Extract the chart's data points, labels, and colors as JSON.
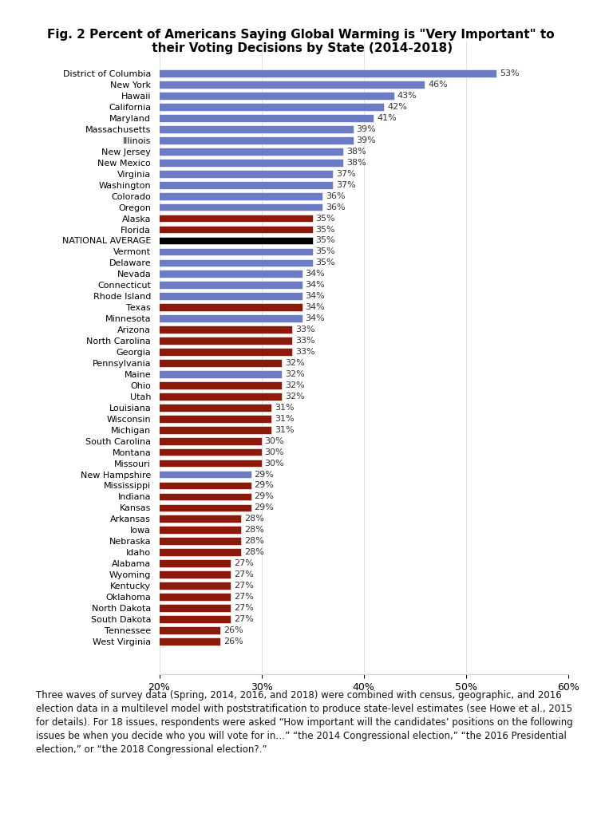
{
  "title": "Fig. 2 Percent of Americans Saying Global Warming is \"Very Important\" to\n their Voting Decisions by State (2014-2018)",
  "states": [
    "District of Columbia",
    "New York",
    "Hawaii",
    "California",
    "Maryland",
    "Massachusetts",
    "Illinois",
    "New Jersey",
    "New Mexico",
    "Virginia",
    "Washington",
    "Colorado",
    "Oregon",
    "Alaska",
    "Florida",
    "NATIONAL AVERAGE",
    "Vermont",
    "Delaware",
    "Nevada",
    "Connecticut",
    "Rhode Island",
    "Texas",
    "Minnesota",
    "Arizona",
    "North Carolina",
    "Georgia",
    "Pennsylvania",
    "Maine",
    "Ohio",
    "Utah",
    "Louisiana",
    "Wisconsin",
    "Michigan",
    "South Carolina",
    "Montana",
    "Missouri",
    "New Hampshire",
    "Mississippi",
    "Indiana",
    "Kansas",
    "Arkansas",
    "Iowa",
    "Nebraska",
    "Idaho",
    "Alabama",
    "Wyoming",
    "Kentucky",
    "Oklahoma",
    "North Dakota",
    "South Dakota",
    "Tennessee",
    "West Virginia"
  ],
  "values": [
    53,
    46,
    43,
    42,
    41,
    39,
    39,
    38,
    38,
    37,
    37,
    36,
    36,
    35,
    35,
    35,
    35,
    35,
    34,
    34,
    34,
    34,
    34,
    33,
    33,
    33,
    32,
    32,
    32,
    32,
    31,
    31,
    31,
    30,
    30,
    30,
    29,
    29,
    29,
    29,
    28,
    28,
    28,
    28,
    27,
    27,
    27,
    27,
    27,
    27,
    26,
    26
  ],
  "colors": [
    "#6b7cc4",
    "#6b7cc4",
    "#6b7cc4",
    "#6b7cc4",
    "#6b7cc4",
    "#6b7cc4",
    "#6b7cc4",
    "#6b7cc4",
    "#6b7cc4",
    "#6b7cc4",
    "#6b7cc4",
    "#6b7cc4",
    "#6b7cc4",
    "#8b1a0a",
    "#8b1a0a",
    "#000000",
    "#6b7cc4",
    "#6b7cc4",
    "#6b7cc4",
    "#6b7cc4",
    "#6b7cc4",
    "#8b1a0a",
    "#6b7cc4",
    "#8b1a0a",
    "#8b1a0a",
    "#8b1a0a",
    "#8b1a0a",
    "#6b7cc4",
    "#8b1a0a",
    "#8b1a0a",
    "#8b1a0a",
    "#8b1a0a",
    "#8b1a0a",
    "#8b1a0a",
    "#8b1a0a",
    "#8b1a0a",
    "#6b7cc4",
    "#8b1a0a",
    "#8b1a0a",
    "#8b1a0a",
    "#8b1a0a",
    "#8b1a0a",
    "#8b1a0a",
    "#8b1a0a",
    "#8b1a0a",
    "#8b1a0a",
    "#8b1a0a",
    "#8b1a0a",
    "#8b1a0a",
    "#8b1a0a",
    "#8b1a0a",
    "#8b1a0a"
  ],
  "xlim": [
    20,
    60
  ],
  "xticks": [
    20,
    30,
    40,
    50,
    60
  ],
  "xticklabels": [
    "20%",
    "30%",
    "40%",
    "50%",
    "60%"
  ],
  "bar_height": 0.7,
  "label_fontsize": 8.0,
  "value_fontsize": 8.0,
  "title_fontsize": 11,
  "footnote_fontsize": 8.5,
  "footnote": "Three waves of survey data (Spring, 2014, 2016, and 2018) were combined with census, geographic, and 2016\nelection data in a multilevel model with poststratification to produce state-level estimates (see Howe et al., 2015\nfor details). For 18 issues, respondents were asked “How important will the candidates’ positions on the following\nissues be when you decide who you will vote for in…” “the 2014 Congressional election,” “the 2016 Presidential\nelection,” or “the 2018 Congressional election?.”"
}
